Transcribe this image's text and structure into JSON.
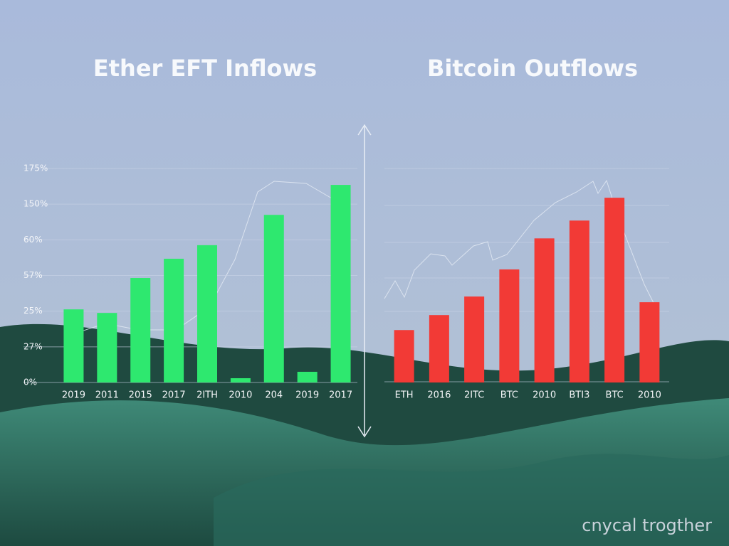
{
  "chart_data": [
    {
      "type": "bar",
      "title": "Ether EFT Inflows",
      "categories": [
        "2019",
        "2011",
        "2015",
        "2017",
        "2ITH",
        "2010",
        "204",
        "2019",
        "2017"
      ],
      "values": [
        2.05,
        1.95,
        2.93,
        3.47,
        3.85,
        0.12,
        4.7,
        0.3,
        5.54
      ],
      "color": "#2ee86f",
      "ylim": [
        0,
        6
      ],
      "yticks": [
        {
          "value": 0,
          "label": "0%"
        },
        {
          "value": 1,
          "label": "27%"
        },
        {
          "value": 2,
          "label": "25%"
        },
        {
          "value": 3,
          "label": "57%"
        },
        {
          "value": 4,
          "label": "60%"
        },
        {
          "value": 5,
          "label": "150%"
        },
        {
          "value": 6,
          "label": "175%"
        }
      ],
      "grid": true
    },
    {
      "type": "bar",
      "title": "Bitcoin Outflows",
      "categories": [
        "ETH",
        "2016",
        "2ITC",
        "BTC",
        "2010",
        "BTI3",
        "BTC",
        "2010"
      ],
      "values": [
        1.47,
        1.89,
        2.41,
        3.17,
        4.04,
        4.54,
        5.18,
        2.25
      ],
      "color": "#f23a36",
      "ylim": [
        0,
        6
      ]
    }
  ],
  "watermark": "cnycal trogther"
}
